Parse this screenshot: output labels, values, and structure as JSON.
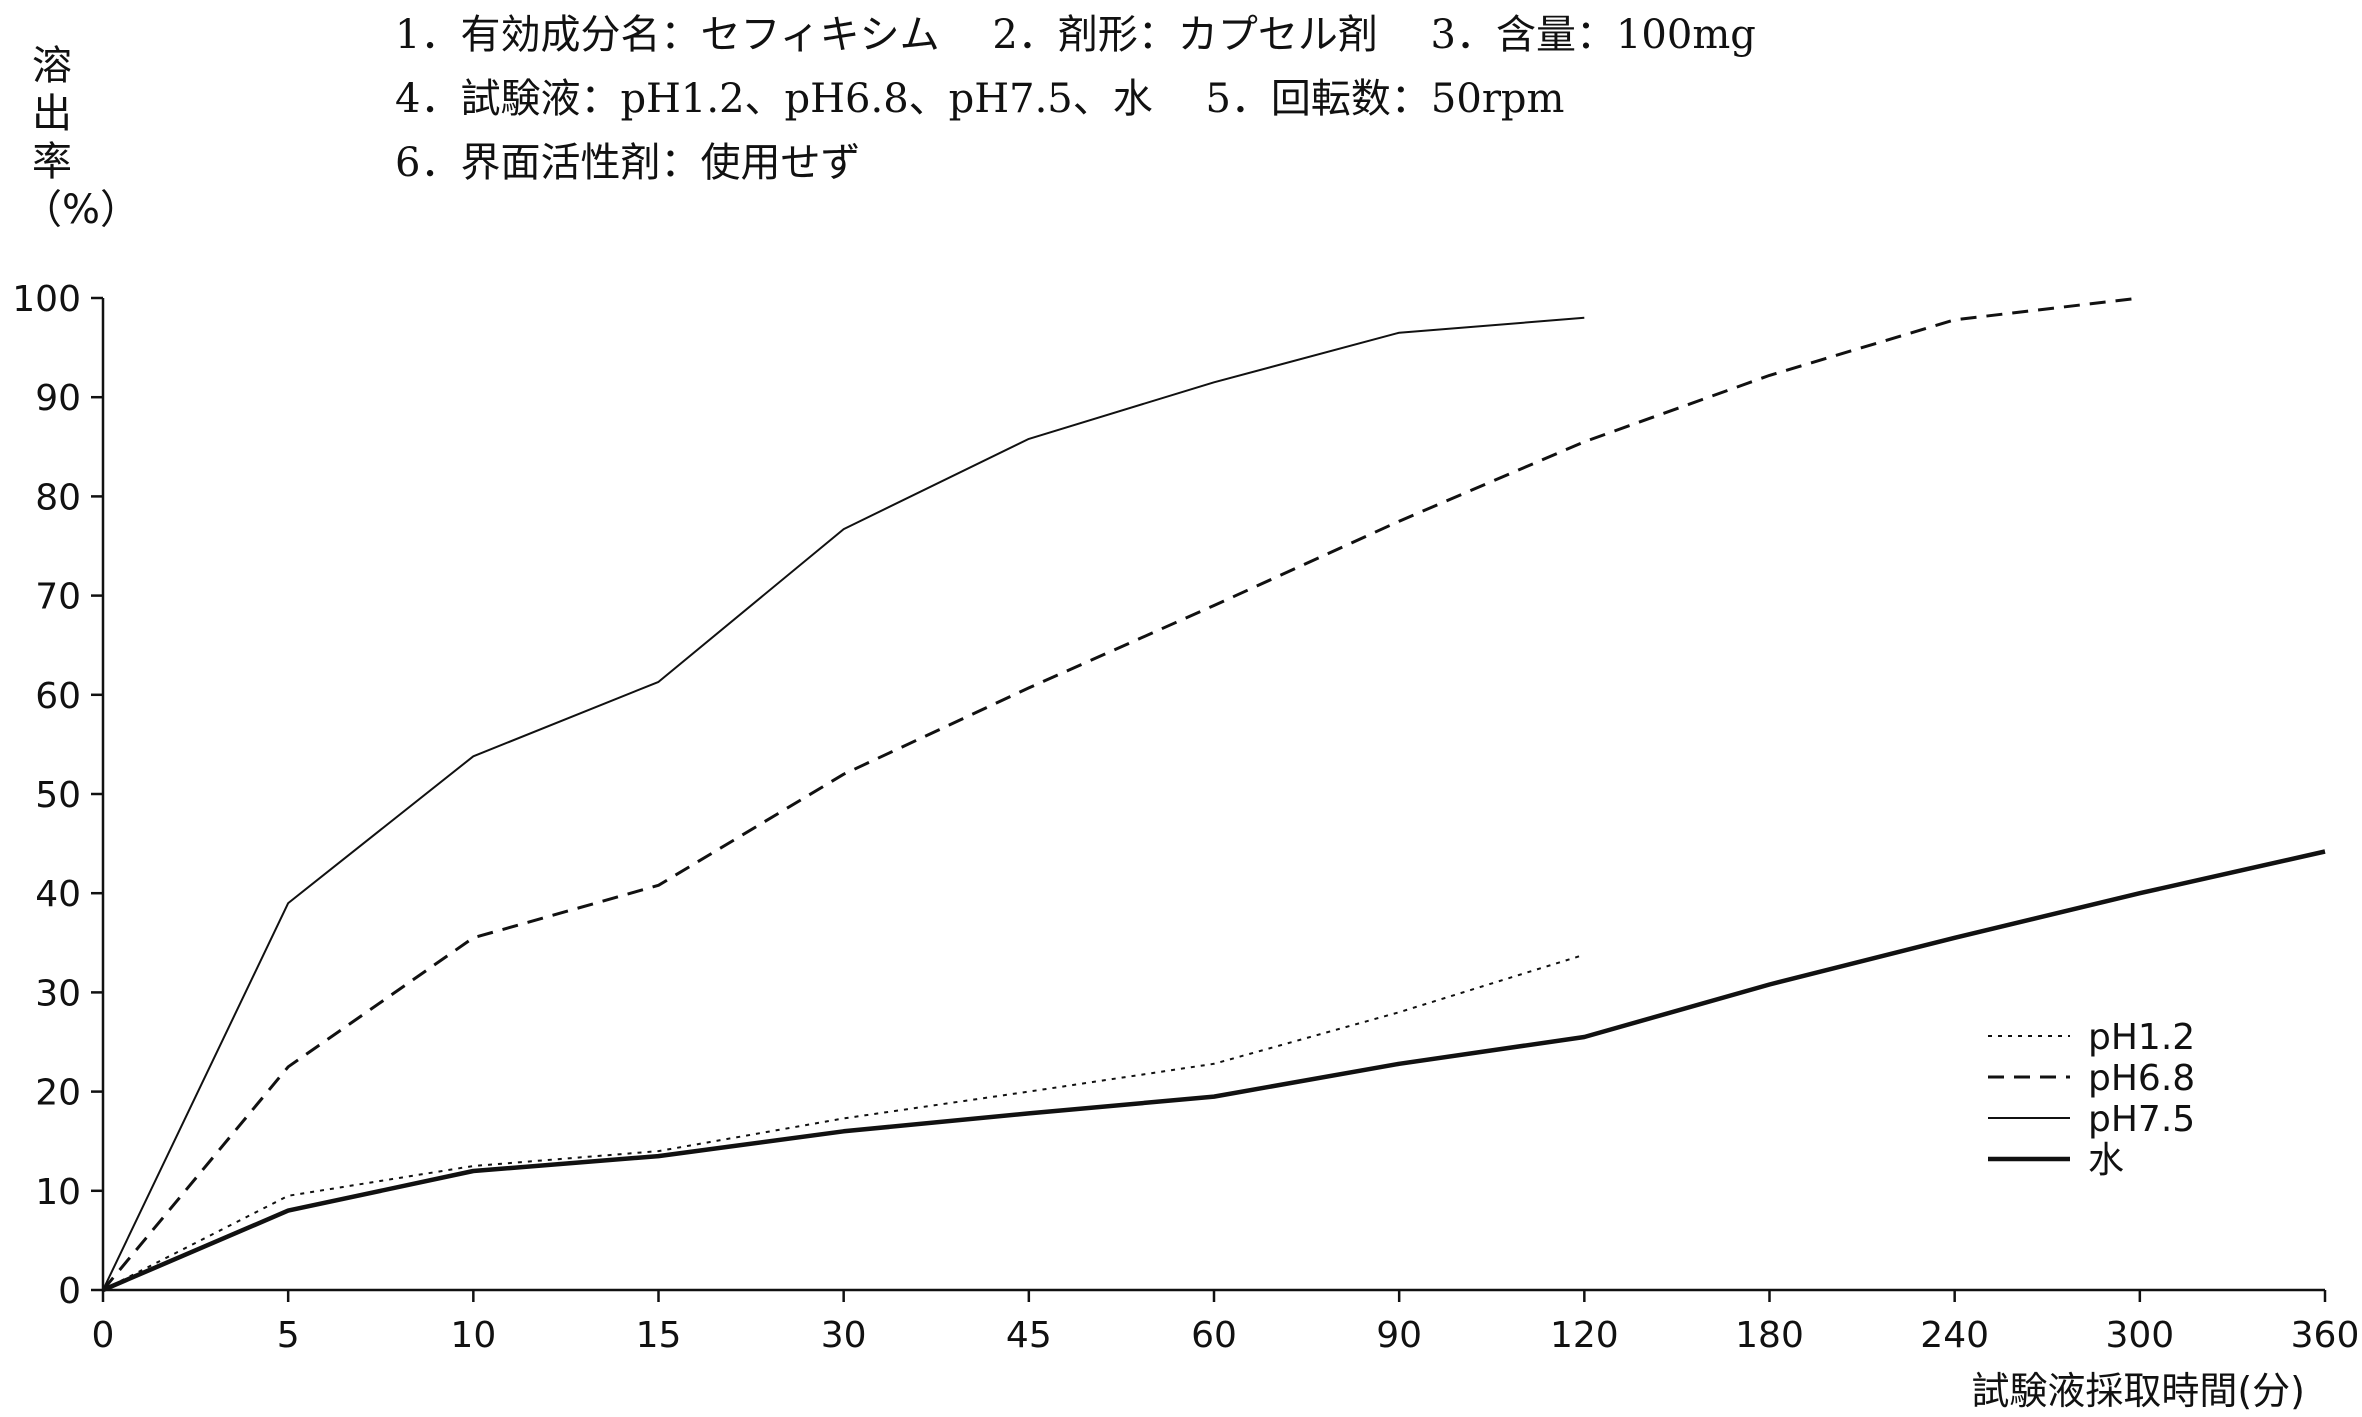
{
  "conditions": {
    "line1": "1．有効成分名：セフィキシム　 2．剤形：カプセル剤　 3．含量：100mg",
    "line2": "4．試験液：pH1.2、pH6.8、pH7.5、水　 5．回転数：50rpm",
    "line3": "6．界面活性剤：使用せず"
  },
  "chart_data": {
    "type": "line",
    "ylabel": [
      "溶",
      "出",
      "率",
      "（%）"
    ],
    "xlabel": "試験液採取時間(分)",
    "categories": [
      "0",
      "5",
      "10",
      "15",
      "30",
      "45",
      "60",
      "90",
      "120",
      "180",
      "240",
      "300",
      "360"
    ],
    "ylim": [
      0,
      100
    ],
    "yticks": [
      "0",
      "10",
      "20",
      "30",
      "40",
      "50",
      "60",
      "70",
      "80",
      "90",
      "100"
    ],
    "grid": false,
    "legend_position": "bottom-right",
    "series": [
      {
        "name": "pH1.2",
        "style": "dotted",
        "values": [
          0,
          9.5,
          12.5,
          14,
          17.3,
          20,
          22.8,
          28,
          33.8,
          null,
          null,
          null,
          null
        ]
      },
      {
        "name": "pH6.8",
        "style": "dashed",
        "values": [
          0,
          22.5,
          35.5,
          40.8,
          52,
          60.7,
          69,
          77.5,
          85.5,
          92.2,
          97.8,
          100,
          null
        ]
      },
      {
        "name": "pH7.5",
        "style": "solid-thin",
        "values": [
          0,
          39,
          53.8,
          61.3,
          76.7,
          85.8,
          91.5,
          96.5,
          98,
          null,
          null,
          null,
          null
        ]
      },
      {
        "name": "水",
        "style": "solid-thick",
        "values": [
          0,
          8,
          12,
          13.5,
          16,
          17.8,
          19.5,
          22.8,
          25.5,
          30.8,
          35.5,
          40,
          44.2
        ]
      }
    ]
  }
}
